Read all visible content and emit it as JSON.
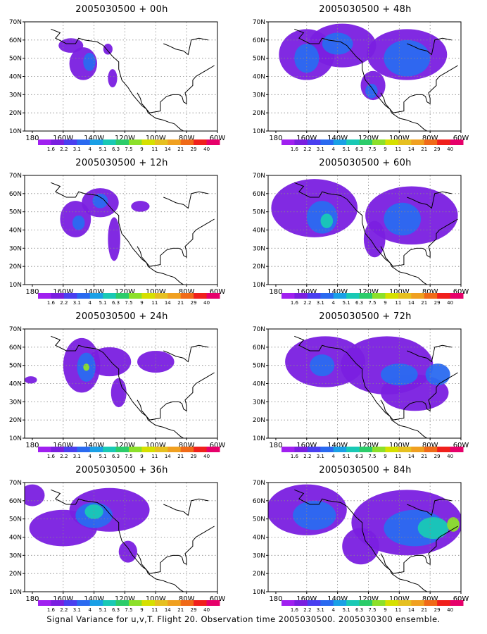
{
  "caption": "Signal Variance for u,v,T. Flight 20. Observation time 2005030500. 2005030300 ensemble.",
  "colors": [
    "#a020f0",
    "#7a1fe0",
    "#4a3ff0",
    "#2a6af0",
    "#1aa0e6",
    "#19c9b5",
    "#2ccc6a",
    "#8ce02a",
    "#d6e000",
    "#e6c020",
    "#f0a020",
    "#f06a18",
    "#f0201c",
    "#e6006a"
  ],
  "colorbar_labels": [
    "1.6",
    "2.2",
    "3.1",
    "4",
    "5.1",
    "6.3",
    "7.5",
    "9",
    "11",
    "14",
    "21",
    "29",
    "40"
  ],
  "axes": {
    "x_ticks": [
      "180",
      "160W",
      "140W",
      "120W",
      "100W",
      "80W",
      "60W"
    ],
    "y_ticks": [
      "10N",
      "20N",
      "30N",
      "40N",
      "50N",
      "60N",
      "70N"
    ]
  },
  "chart_data": [
    {
      "type": "heatmap",
      "title": "2005030500 + 00h",
      "xlim": [
        -185,
        -60
      ],
      "ylim": [
        10,
        70
      ],
      "grid": true,
      "blobs": [
        {
          "lon": -155,
          "lat": 57,
          "rx": 8,
          "ry": 4,
          "level": 1
        },
        {
          "lon": -147,
          "lat": 47,
          "rx": 9,
          "ry": 9,
          "level": 1
        },
        {
          "lon": -143,
          "lat": 48,
          "rx": 4,
          "ry": 5,
          "level": 3
        },
        {
          "lon": -128,
          "lat": 39,
          "rx": 3,
          "ry": 5,
          "level": 1
        },
        {
          "lon": -131,
          "lat": 55,
          "rx": 3,
          "ry": 3,
          "level": 1
        }
      ]
    },
    {
      "type": "heatmap",
      "title": "2005030500 + 48h",
      "xlim": [
        -185,
        -60
      ],
      "ylim": [
        10,
        70
      ],
      "grid": true,
      "blobs": [
        {
          "lon": -160,
          "lat": 52,
          "rx": 18,
          "ry": 14,
          "level": 1
        },
        {
          "lon": -137,
          "lat": 57,
          "rx": 22,
          "ry": 12,
          "level": 1
        },
        {
          "lon": -95,
          "lat": 52,
          "rx": 26,
          "ry": 14,
          "level": 1
        },
        {
          "lon": -117,
          "lat": 35,
          "rx": 8,
          "ry": 8,
          "level": 1
        },
        {
          "lon": -160,
          "lat": 50,
          "rx": 8,
          "ry": 8,
          "level": 3
        },
        {
          "lon": -140,
          "lat": 58,
          "rx": 10,
          "ry": 6,
          "level": 3
        },
        {
          "lon": -95,
          "lat": 50,
          "rx": 15,
          "ry": 10,
          "level": 3
        },
        {
          "lon": -118,
          "lat": 32,
          "rx": 4,
          "ry": 4,
          "level": 3
        }
      ]
    },
    {
      "type": "heatmap",
      "title": "2005030500 + 12h",
      "xlim": [
        -185,
        -60
      ],
      "ylim": [
        10,
        70
      ],
      "grid": true,
      "blobs": [
        {
          "lon": -152,
          "lat": 46,
          "rx": 10,
          "ry": 10,
          "level": 1
        },
        {
          "lon": -136,
          "lat": 55,
          "rx": 12,
          "ry": 8,
          "level": 1
        },
        {
          "lon": -127,
          "lat": 35,
          "rx": 4,
          "ry": 12,
          "level": 1
        },
        {
          "lon": -110,
          "lat": 53,
          "rx": 6,
          "ry": 3,
          "level": 1
        },
        {
          "lon": -150,
          "lat": 44,
          "rx": 4,
          "ry": 4,
          "level": 3
        },
        {
          "lon": -136,
          "lat": 56,
          "rx": 5,
          "ry": 4,
          "level": 3
        }
      ]
    },
    {
      "type": "heatmap",
      "title": "2005030500 + 60h",
      "xlim": [
        -185,
        -60
      ],
      "ylim": [
        10,
        70
      ],
      "grid": true,
      "blobs": [
        {
          "lon": -155,
          "lat": 52,
          "rx": 28,
          "ry": 16,
          "level": 1
        },
        {
          "lon": -92,
          "lat": 48,
          "rx": 30,
          "ry": 16,
          "level": 1
        },
        {
          "lon": -116,
          "lat": 35,
          "rx": 7,
          "ry": 10,
          "level": 1
        },
        {
          "lon": -150,
          "lat": 47,
          "rx": 10,
          "ry": 9,
          "level": 3
        },
        {
          "lon": -98,
          "lat": 46,
          "rx": 12,
          "ry": 9,
          "level": 3
        },
        {
          "lon": -147,
          "lat": 45,
          "rx": 4,
          "ry": 4,
          "level": 5
        }
      ]
    },
    {
      "type": "heatmap",
      "title": "2005030500 + 24h",
      "xlim": [
        -185,
        -60
      ],
      "ylim": [
        10,
        70
      ],
      "grid": true,
      "blobs": [
        {
          "lon": -148,
          "lat": 50,
          "rx": 12,
          "ry": 15,
          "level": 1
        },
        {
          "lon": -130,
          "lat": 52,
          "rx": 14,
          "ry": 8,
          "level": 1
        },
        {
          "lon": -100,
          "lat": 52,
          "rx": 12,
          "ry": 6,
          "level": 1
        },
        {
          "lon": -124,
          "lat": 35,
          "rx": 5,
          "ry": 8,
          "level": 1
        },
        {
          "lon": -181,
          "lat": 42,
          "rx": 4,
          "ry": 2,
          "level": 1
        },
        {
          "lon": -145,
          "lat": 49,
          "rx": 6,
          "ry": 8,
          "level": 3
        },
        {
          "lon": -145,
          "lat": 49,
          "rx": 2,
          "ry": 2,
          "level": 7
        }
      ]
    },
    {
      "type": "heatmap",
      "title": "2005030500 + 72h",
      "xlim": [
        -185,
        -60
      ],
      "ylim": [
        10,
        70
      ],
      "grid": true,
      "blobs": [
        {
          "lon": -148,
          "lat": 52,
          "rx": 26,
          "ry": 14,
          "level": 1
        },
        {
          "lon": -108,
          "lat": 50,
          "rx": 30,
          "ry": 16,
          "level": 1
        },
        {
          "lon": -90,
          "lat": 35,
          "rx": 22,
          "ry": 10,
          "level": 1
        },
        {
          "lon": -150,
          "lat": 50,
          "rx": 8,
          "ry": 6,
          "level": 3
        },
        {
          "lon": -100,
          "lat": 45,
          "rx": 12,
          "ry": 6,
          "level": 3
        },
        {
          "lon": -75,
          "lat": 45,
          "rx": 8,
          "ry": 6,
          "level": 3
        }
      ]
    },
    {
      "type": "heatmap",
      "title": "2005030500 + 36h",
      "xlim": [
        -185,
        -60
      ],
      "ylim": [
        10,
        70
      ],
      "grid": true,
      "blobs": [
        {
          "lon": -160,
          "lat": 45,
          "rx": 22,
          "ry": 10,
          "level": 1
        },
        {
          "lon": -130,
          "lat": 55,
          "rx": 26,
          "ry": 12,
          "level": 1
        },
        {
          "lon": -118,
          "lat": 32,
          "rx": 6,
          "ry": 6,
          "level": 1
        },
        {
          "lon": -180,
          "lat": 63,
          "rx": 8,
          "ry": 6,
          "level": 1
        },
        {
          "lon": -140,
          "lat": 52,
          "rx": 12,
          "ry": 7,
          "level": 3
        },
        {
          "lon": -140,
          "lat": 54,
          "rx": 6,
          "ry": 4,
          "level": 5
        }
      ]
    },
    {
      "type": "heatmap",
      "title": "2005030500 + 84h",
      "xlim": [
        -185,
        -60
      ],
      "ylim": [
        10,
        70
      ],
      "grid": true,
      "blobs": [
        {
          "lon": -160,
          "lat": 55,
          "rx": 26,
          "ry": 14,
          "level": 1
        },
        {
          "lon": -95,
          "lat": 48,
          "rx": 36,
          "ry": 18,
          "level": 1
        },
        {
          "lon": -125,
          "lat": 35,
          "rx": 12,
          "ry": 10,
          "level": 1
        },
        {
          "lon": -155,
          "lat": 52,
          "rx": 14,
          "ry": 8,
          "level": 3
        },
        {
          "lon": -90,
          "lat": 45,
          "rx": 20,
          "ry": 10,
          "level": 3
        },
        {
          "lon": -78,
          "lat": 45,
          "rx": 10,
          "ry": 6,
          "level": 5
        },
        {
          "lon": -65,
          "lat": 47,
          "rx": 4,
          "ry": 4,
          "level": 7
        }
      ]
    }
  ]
}
